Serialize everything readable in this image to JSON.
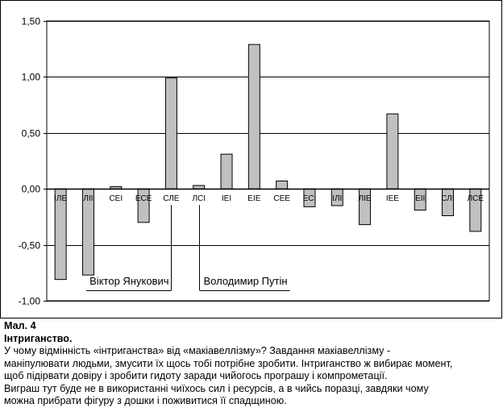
{
  "chart_data": {
    "type": "bar",
    "categories": [
      "ІЛЕ",
      "ЛІІ",
      "СЕІ",
      "ЕСЕ",
      "СЛЕ",
      "ЛСІ",
      "ІЕІ",
      "ЕІЕ",
      "СЕЕ",
      "ЕСІ",
      "ІЛІ",
      "ЛІЕ",
      "ІЕЕ",
      "ЕІІ",
      "СЛІ",
      "ЛСЕ"
    ],
    "values": [
      -0.81,
      -0.77,
      0.02,
      -0.3,
      0.99,
      0.03,
      0.31,
      1.29,
      0.07,
      -0.16,
      -0.15,
      -0.32,
      0.67,
      -0.19,
      -0.24,
      -0.38
    ],
    "ylim": [
      -1.0,
      1.5
    ],
    "yticks": [
      "-1,00",
      "-0,50",
      "0,00",
      "0,50",
      "1,00",
      "1,50"
    ],
    "ytick_values": [
      -1.0,
      -0.5,
      0.0,
      0.5,
      1.0,
      1.5
    ],
    "grid": true,
    "bar_color": "#c0c0c0",
    "annotations": [
      {
        "text": "Віктор Янукович",
        "category": "СЛЕ"
      },
      {
        "text": "Володимир Путін",
        "category": "ЛСІ"
      }
    ]
  },
  "caption": {
    "figure_number": "Мал. 4",
    "title": "Інтриганство.",
    "lines": [
      "У чому відмінність «інтриганства» від «макіавеллізму»? Завдання макіавеллізму -",
      "маніпулювати людьми, змусити їх щось тобі потрібне зробити. Інтриганство ж вибирає момент,",
      "щоб підірвати довіру і зробити гидоту заради чийогось програшу і компрометації.",
      "Виграш тут буде не в використанні чиїхось сил і ресурсів, а в чийсь поразці, завдяки чому",
      "можна прибрати фігуру з дошки і поживитися її спадщиною."
    ]
  }
}
